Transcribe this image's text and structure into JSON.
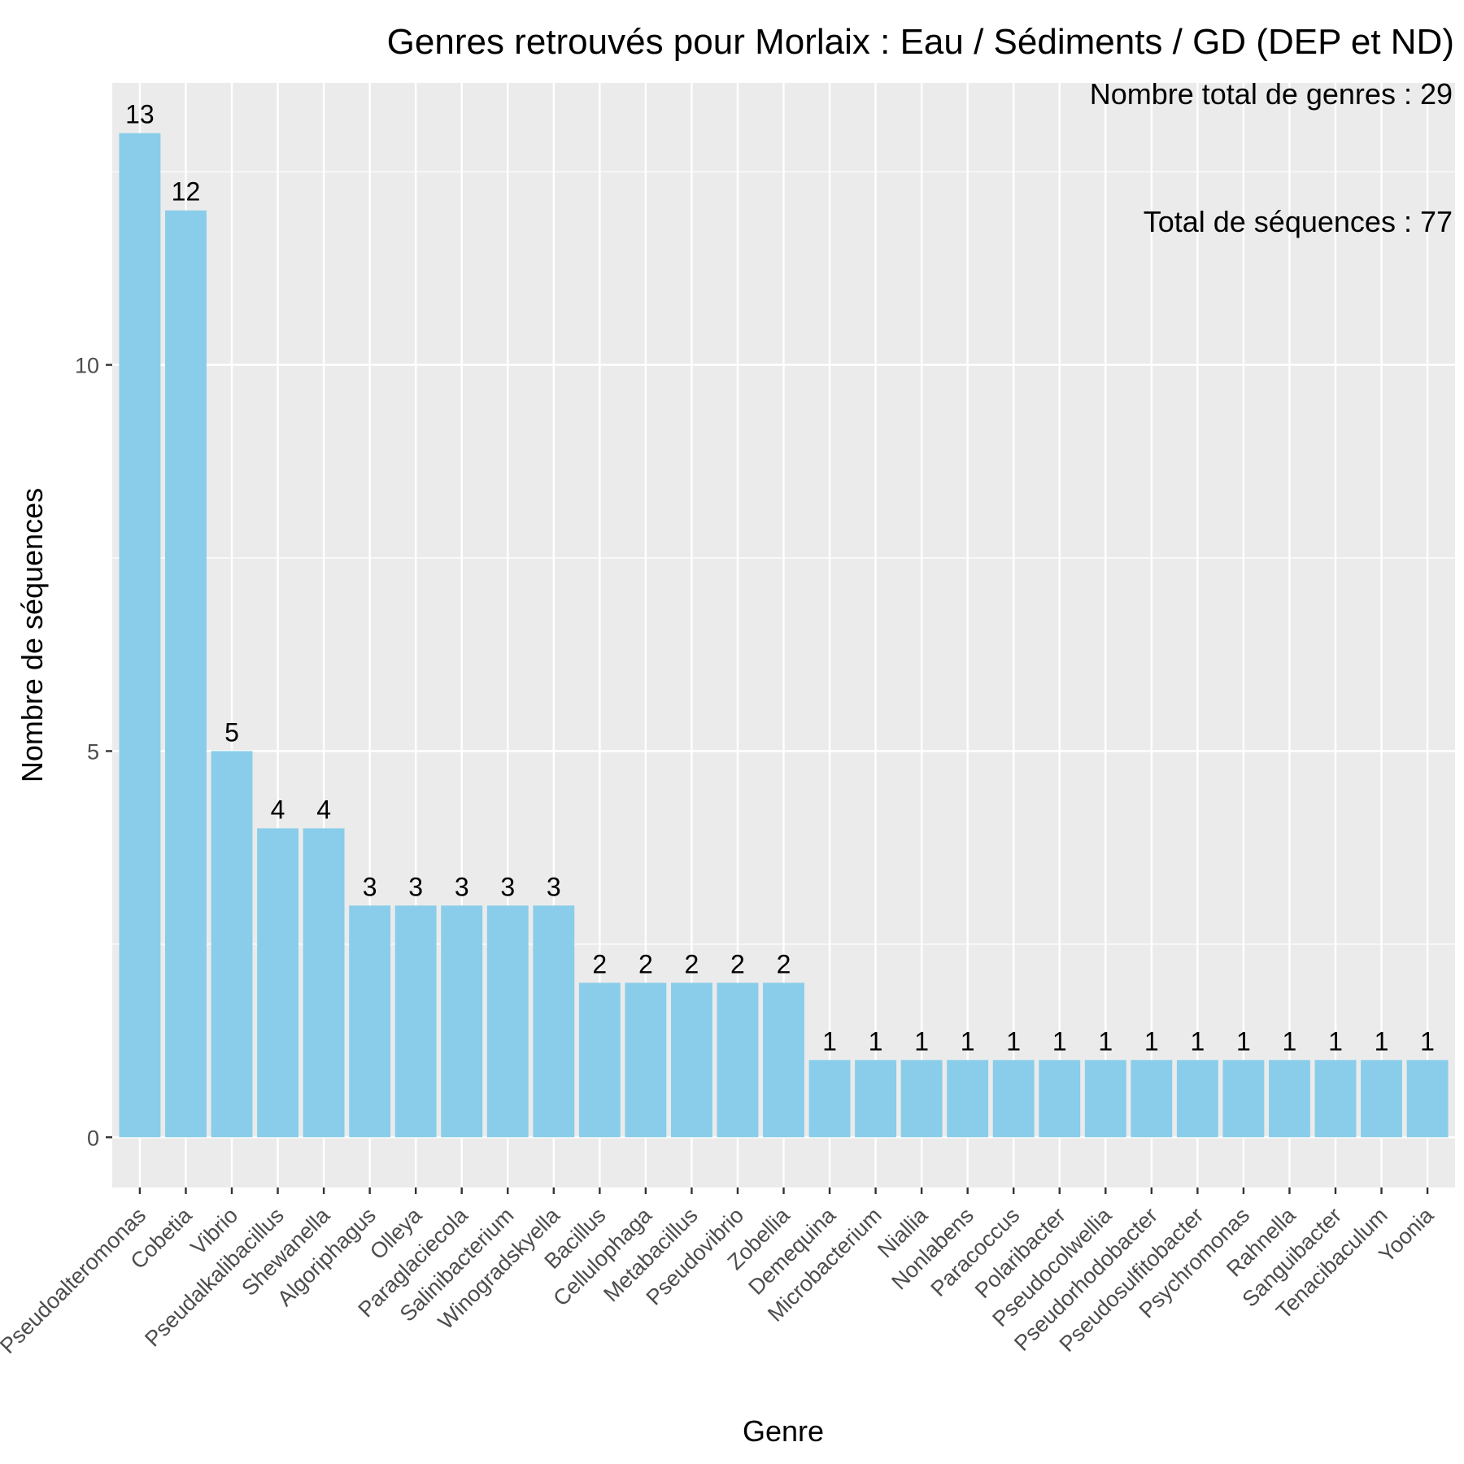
{
  "chart_data": {
    "type": "bar",
    "title": "Genres retrouvés pour Morlaix : Eau / Sédiments / GD (DEP et ND)",
    "xlabel": "Genre",
    "ylabel": "Nombre de séquences",
    "annotations": [
      "Nombre total de genres : 29",
      "Total de séquences : 77"
    ],
    "categories": [
      "Pseudoalteromonas",
      "Cobetia",
      "Vibrio",
      "Pseudalkalibacillus",
      "Shewanella",
      "Algoriphagus",
      "Olleya",
      "Paraglaciecola",
      "Salinibacterium",
      "Winogradskyella",
      "Bacillus",
      "Cellulophaga",
      "Metabacillus",
      "Pseudovibrio",
      "Zobellia",
      "Demequina",
      "Microbacterium",
      "Niallia",
      "Nonlabens",
      "Paracoccus",
      "Polaribacter",
      "Pseudocolwellia",
      "Pseudorhodobacter",
      "Pseudosulfitobacter",
      "Psychromonas",
      "Rahnella",
      "Sanguibacter",
      "Tenacibaculum",
      "Yoonia"
    ],
    "values": [
      13,
      12,
      5,
      4,
      4,
      3,
      3,
      3,
      3,
      3,
      2,
      2,
      2,
      2,
      2,
      1,
      1,
      1,
      1,
      1,
      1,
      1,
      1,
      1,
      1,
      1,
      1,
      1,
      1
    ],
    "data_labels": [
      "13",
      "12",
      "5",
      "4",
      "4",
      "3",
      "3",
      "3",
      "3",
      "3",
      "2",
      "2",
      "2",
      "2",
      "2",
      "1",
      "1",
      "1",
      "1",
      "1",
      "1",
      "1",
      "1",
      "1",
      "1",
      "1",
      "1",
      "1",
      "1"
    ],
    "yticks": [
      0,
      5,
      10
    ],
    "ytick_labels": [
      "0",
      "5",
      "10"
    ],
    "ylim": [
      -0.65,
      13.65
    ],
    "grid": true,
    "colors": {
      "bar": "#89cdea",
      "panel": "#ebebeb",
      "grid": "#ffffff",
      "tick": "#333333"
    }
  }
}
